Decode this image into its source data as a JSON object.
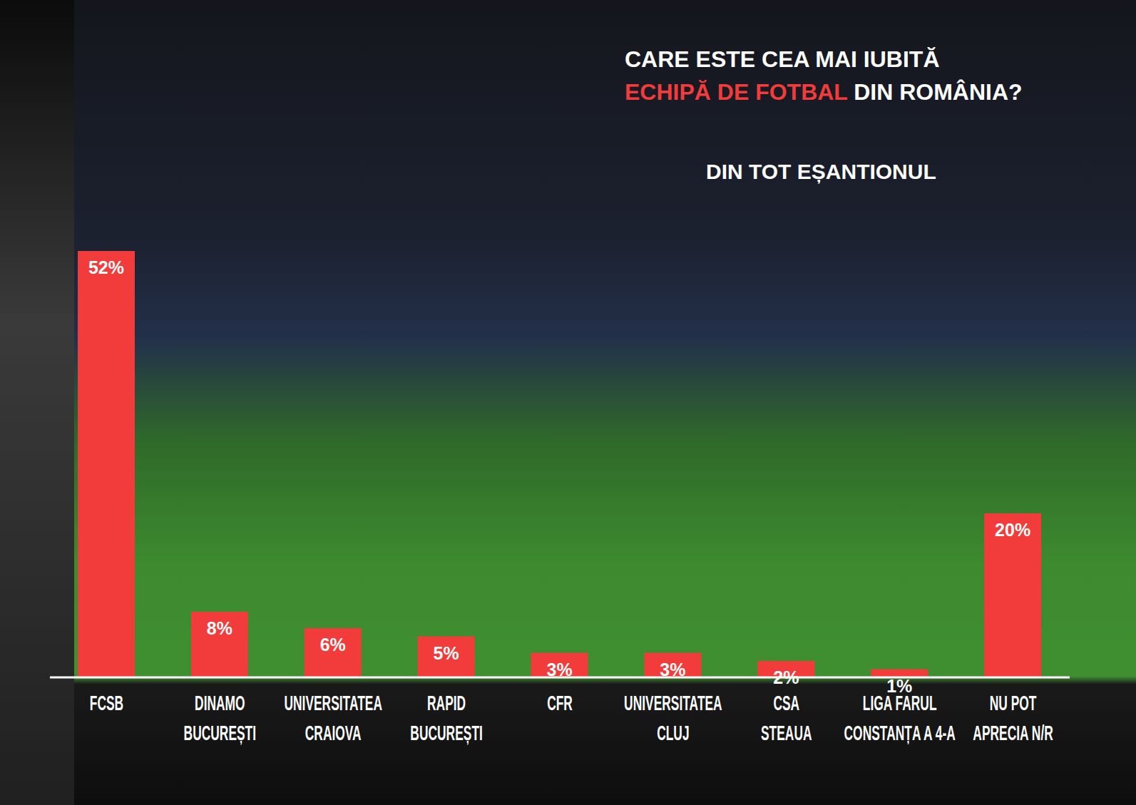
{
  "chart_data": {
    "type": "bar",
    "title": "CARE ESTE CEA MAI IUBITĂ ECHIPĂ DE FOTBAL DIN ROMÂNIA?",
    "subtitle": "DIN TOT EȘANTIONUL",
    "categories": [
      "FCSB",
      "DINAMO\nBUCUREȘTI",
      "UNIVERSITATEA\nCRAIOVA",
      "RAPID\nBUCUREȘTI",
      "CFR",
      "UNIVERSITATEA\nCLUJ",
      "CSA\nSTEAUA",
      "LIGA FARUL\nCONSTANȚA A 4-A",
      "NU POT\nAPRECIA N/R"
    ],
    "values": [
      52,
      8,
      6,
      5,
      3,
      3,
      2,
      1,
      20
    ],
    "value_labels": [
      "52%",
      "8%",
      "6%",
      "5%",
      "3%",
      "3%",
      "2%",
      "1%",
      "20%"
    ],
    "color": "#f23b3b",
    "ylim": [
      0,
      52
    ],
    "data_labels": true,
    "tick_labels": "x",
    "grid": false
  }
}
